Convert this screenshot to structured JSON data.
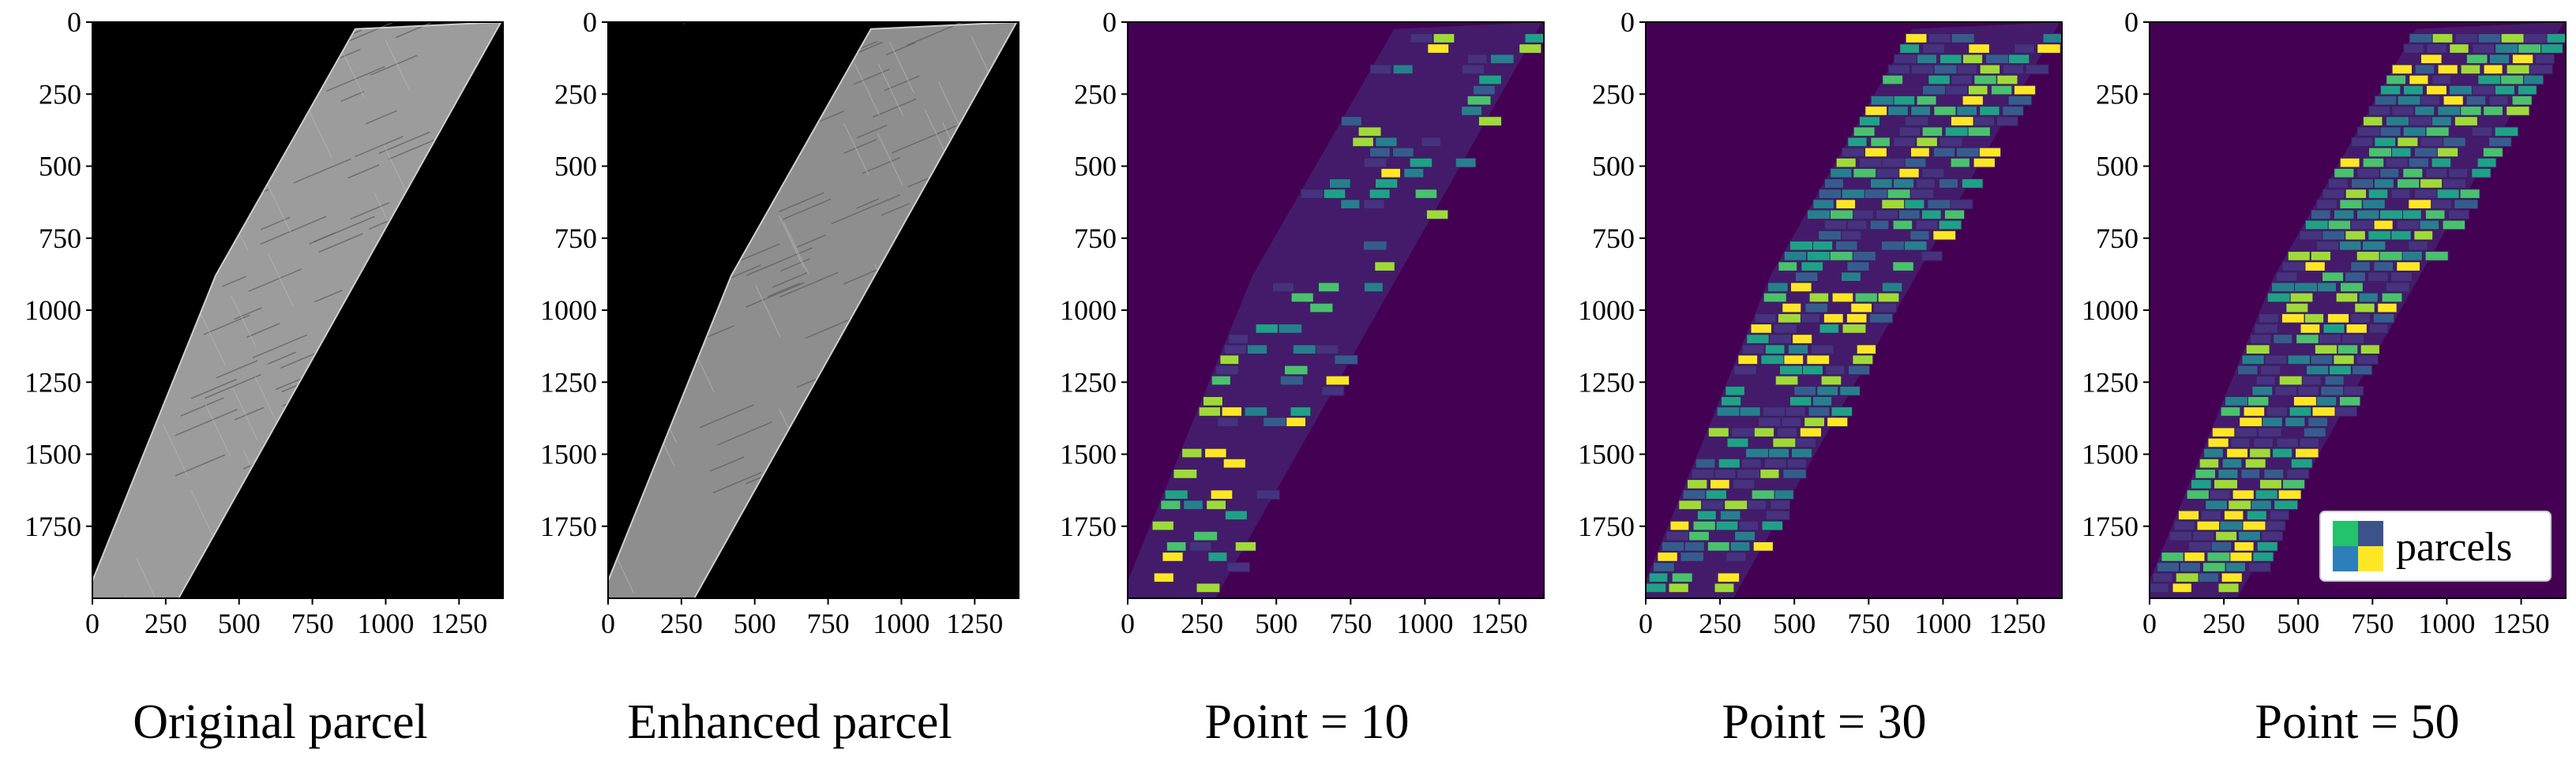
{
  "panels": [
    {
      "caption": "Original parcel",
      "kind": "grayscale",
      "x_ticks": [
        "0",
        "250",
        "500",
        "750",
        "1000",
        "1250"
      ],
      "y_ticks": [
        "0",
        "250",
        "500",
        "750",
        "1000",
        "1250",
        "1500",
        "1750"
      ]
    },
    {
      "caption": "Enhanced parcel",
      "kind": "grayscale",
      "x_ticks": [
        "0",
        "250",
        "500",
        "750",
        "1000",
        "1250"
      ],
      "y_ticks": [
        "0",
        "250",
        "500",
        "750",
        "1000",
        "1250",
        "1500",
        "1750"
      ]
    },
    {
      "caption": "Point = 10",
      "kind": "segmentation",
      "x_ticks": [
        "0",
        "250",
        "500",
        "750",
        "1000",
        "1250"
      ],
      "y_ticks": [
        "0",
        "250",
        "500",
        "750",
        "1000",
        "1250",
        "1500",
        "1750"
      ]
    },
    {
      "caption": "Point = 30",
      "kind": "segmentation",
      "x_ticks": [
        "0",
        "250",
        "500",
        "750",
        "1000",
        "1250"
      ],
      "y_ticks": [
        "0",
        "250",
        "500",
        "750",
        "1000",
        "1250",
        "1500",
        "1750"
      ]
    },
    {
      "caption": "Point = 50",
      "kind": "segmentation",
      "x_ticks": [
        "0",
        "250",
        "500",
        "750",
        "1000",
        "1250"
      ],
      "y_ticks": [
        "0",
        "250",
        "500",
        "750",
        "1000",
        "1250",
        "1500",
        "1750"
      ]
    }
  ],
  "legend": {
    "label": "parcels",
    "colors": [
      "#22c36b",
      "#3b528b",
      "#2c7fb8",
      "#fde725"
    ]
  },
  "colors": {
    "background_dark": "#000000",
    "seg_background": "#440154",
    "viridis": [
      "#440154",
      "#46327e",
      "#365c8d",
      "#277f8e",
      "#1fa187",
      "#4ac16d",
      "#a0da39",
      "#fde725"
    ]
  }
}
